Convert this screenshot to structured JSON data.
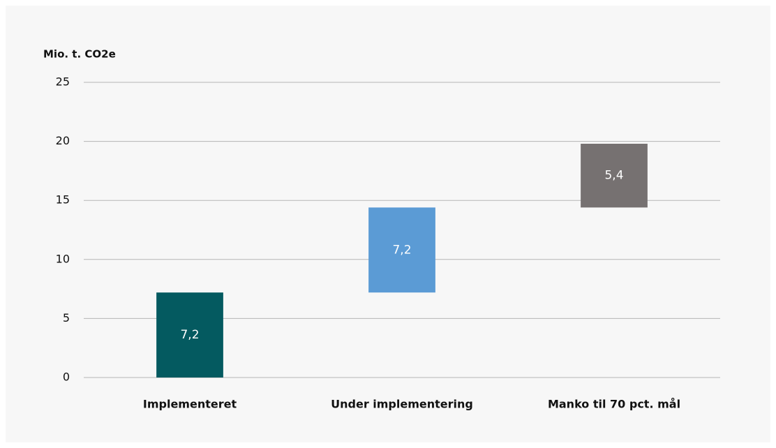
{
  "chart_data": {
    "type": "waterfall",
    "y_label": "Mio. t. CO2e",
    "categories": [
      "Implementeret",
      "Under implementering",
      "Manko til 70 pct. mål"
    ],
    "values": [
      7.2,
      7.2,
      5.4
    ],
    "value_labels": [
      "7,2",
      "7,2",
      "5,4"
    ],
    "colors": [
      "#045a60",
      "#5b9bd5",
      "#767171"
    ],
    "ylim": [
      0,
      25
    ],
    "yticks": [
      0,
      5,
      10,
      15,
      20,
      25
    ],
    "grid": true
  }
}
